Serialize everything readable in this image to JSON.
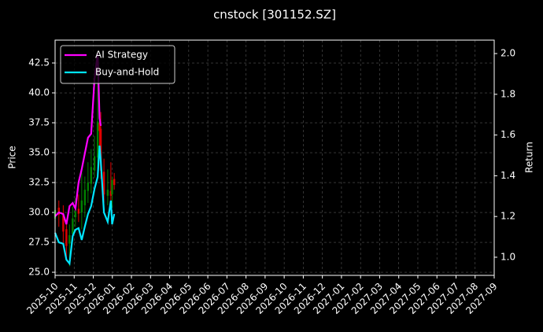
{
  "chart_data": {
    "type": "candlestick",
    "title": "cnstock [301152.SZ]",
    "ylabel": "Price",
    "y2label": "Return",
    "x": [
      "2025-10-01",
      "2025-10-07",
      "2025-10-14",
      "2025-10-19",
      "2025-10-24",
      "2025-10-29",
      "2025-11-03",
      "2025-11-08",
      "2025-11-13",
      "2025-11-18",
      "2025-11-23",
      "2025-11-28",
      "2025-12-03",
      "2025-12-08",
      "2025-12-11",
      "2025-12-13",
      "2025-12-18",
      "2025-12-24",
      "2025-12-29",
      "2025-12-31",
      "2026-01-04"
    ],
    "open": [
      29.5,
      30.4,
      29.8,
      28.6,
      27.4,
      28.2,
      29.6,
      30.3,
      30.0,
      30.6,
      31.8,
      32.4,
      33.5,
      34.6,
      37.5,
      37.0,
      33.4,
      31.4,
      31.8,
      31.5,
      32.8
    ],
    "high": [
      31.2,
      31.0,
      30.6,
      29.3,
      29.0,
      30.5,
      31.2,
      31.5,
      33.6,
      33.0,
      34.2,
      35.3,
      36.4,
      42.2,
      38.6,
      38.4,
      34.5,
      33.6,
      34.2,
      33.0,
      33.3
    ],
    "low": [
      28.0,
      28.8,
      27.2,
      26.0,
      25.5,
      27.6,
      28.8,
      29.2,
      28.6,
      29.6,
      30.8,
      31.6,
      32.9,
      33.6,
      34.9,
      32.8,
      30.8,
      30.6,
      31.0,
      30.4,
      31.9
    ],
    "close": [
      30.2,
      29.8,
      28.4,
      27.2,
      28.1,
      29.5,
      30.1,
      29.9,
      31.0,
      31.9,
      32.5,
      33.8,
      34.7,
      37.6,
      36.8,
      33.5,
      31.5,
      31.9,
      31.4,
      32.7,
      32.3
    ],
    "up_color": "#008000",
    "down_color": "#e00000",
    "series": [
      {
        "name": "AI Strategy",
        "color": "#ff00ff",
        "axis": "y2",
        "values": [
          1.201,
          1.22,
          1.212,
          1.162,
          1.251,
          1.266,
          1.239,
          1.367,
          1.432,
          1.51,
          1.587,
          1.606,
          1.876,
          2.0,
          1.683,
          1.645,
          null,
          null,
          null,
          null,
          null
        ]
      },
      {
        "name": "Buy-and-Hold",
        "color": "#00e5ff",
        "axis": "y2",
        "values": [
          1.12,
          1.073,
          1.066,
          0.988,
          0.969,
          1.104,
          1.135,
          1.143,
          1.085,
          1.151,
          1.212,
          1.251,
          1.336,
          1.394,
          1.548,
          1.471,
          1.22,
          1.174,
          1.278,
          1.162,
          1.212
        ]
      }
    ],
    "xlim": [
      "2025-10",
      "2027-09"
    ],
    "xticks": [
      "2025-10",
      "2025-11",
      "2025-12",
      "2026-01",
      "2026-02",
      "2026-03",
      "2026-04",
      "2026-05",
      "2026-06",
      "2026-07",
      "2026-08",
      "2026-09",
      "2026-10",
      "2026-11",
      "2026-12",
      "2027-01",
      "2027-02",
      "2027-03",
      "2027-04",
      "2027-05",
      "2027-06",
      "2027-07",
      "2027-08",
      "2027-09"
    ],
    "ylim": [
      24.74,
      44.41
    ],
    "yticks": [
      {
        "value": 25,
        "label": "25.0"
      },
      {
        "value": 27.5,
        "label": "27.5"
      },
      {
        "value": 30,
        "label": "30.0"
      },
      {
        "value": 32.5,
        "label": "32.5"
      },
      {
        "value": 35,
        "label": "35.0"
      },
      {
        "value": 37.5,
        "label": "37.5"
      },
      {
        "value": 40,
        "label": "40.0"
      },
      {
        "value": 42.5,
        "label": "42.5"
      }
    ],
    "y2lim": [
      0.911,
      2.066
    ],
    "y2ticks": [
      {
        "value": 1,
        "label": "1.0"
      },
      {
        "value": 1.2,
        "label": "1.2"
      },
      {
        "value": 1.4,
        "label": "1.4"
      },
      {
        "value": 1.6,
        "label": "1.6"
      },
      {
        "value": 1.8,
        "label": "1.8"
      },
      {
        "value": 2,
        "label": "2.0"
      }
    ],
    "grid": true,
    "legend": "upper left"
  }
}
